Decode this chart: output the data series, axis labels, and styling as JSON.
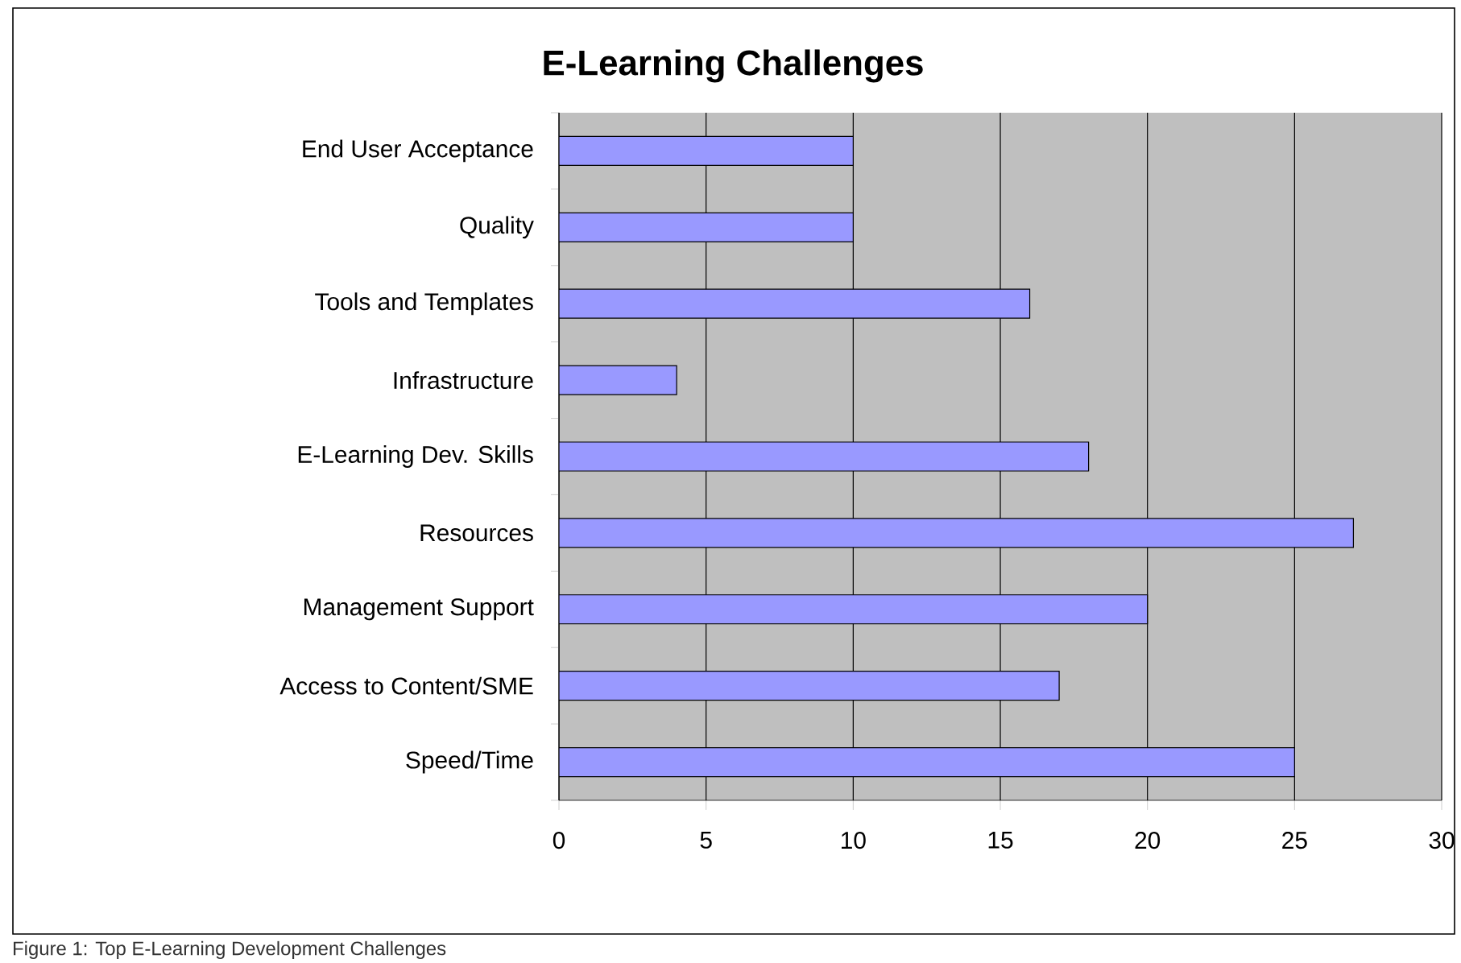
{
  "chart_data": {
    "type": "bar",
    "orientation": "horizontal",
    "title": "E-Learning Challenges",
    "categories": [
      "End User Acceptance",
      "Quality",
      "Tools and Templates",
      "Infrastructure",
      "E-Learning Dev. Skills",
      "Resources",
      "Management Support",
      "Access to Content/SME",
      "Speed/Time"
    ],
    "values": [
      10,
      10,
      16,
      4,
      18,
      27,
      20,
      17,
      25
    ],
    "color": "#9999ff",
    "xlim": [
      0,
      30
    ],
    "xticks": [
      0,
      5,
      10,
      15,
      20,
      25,
      30
    ],
    "grid": "x",
    "annotations": [
      "Figure 1: Top E-Learning Development Challenges"
    ]
  }
}
